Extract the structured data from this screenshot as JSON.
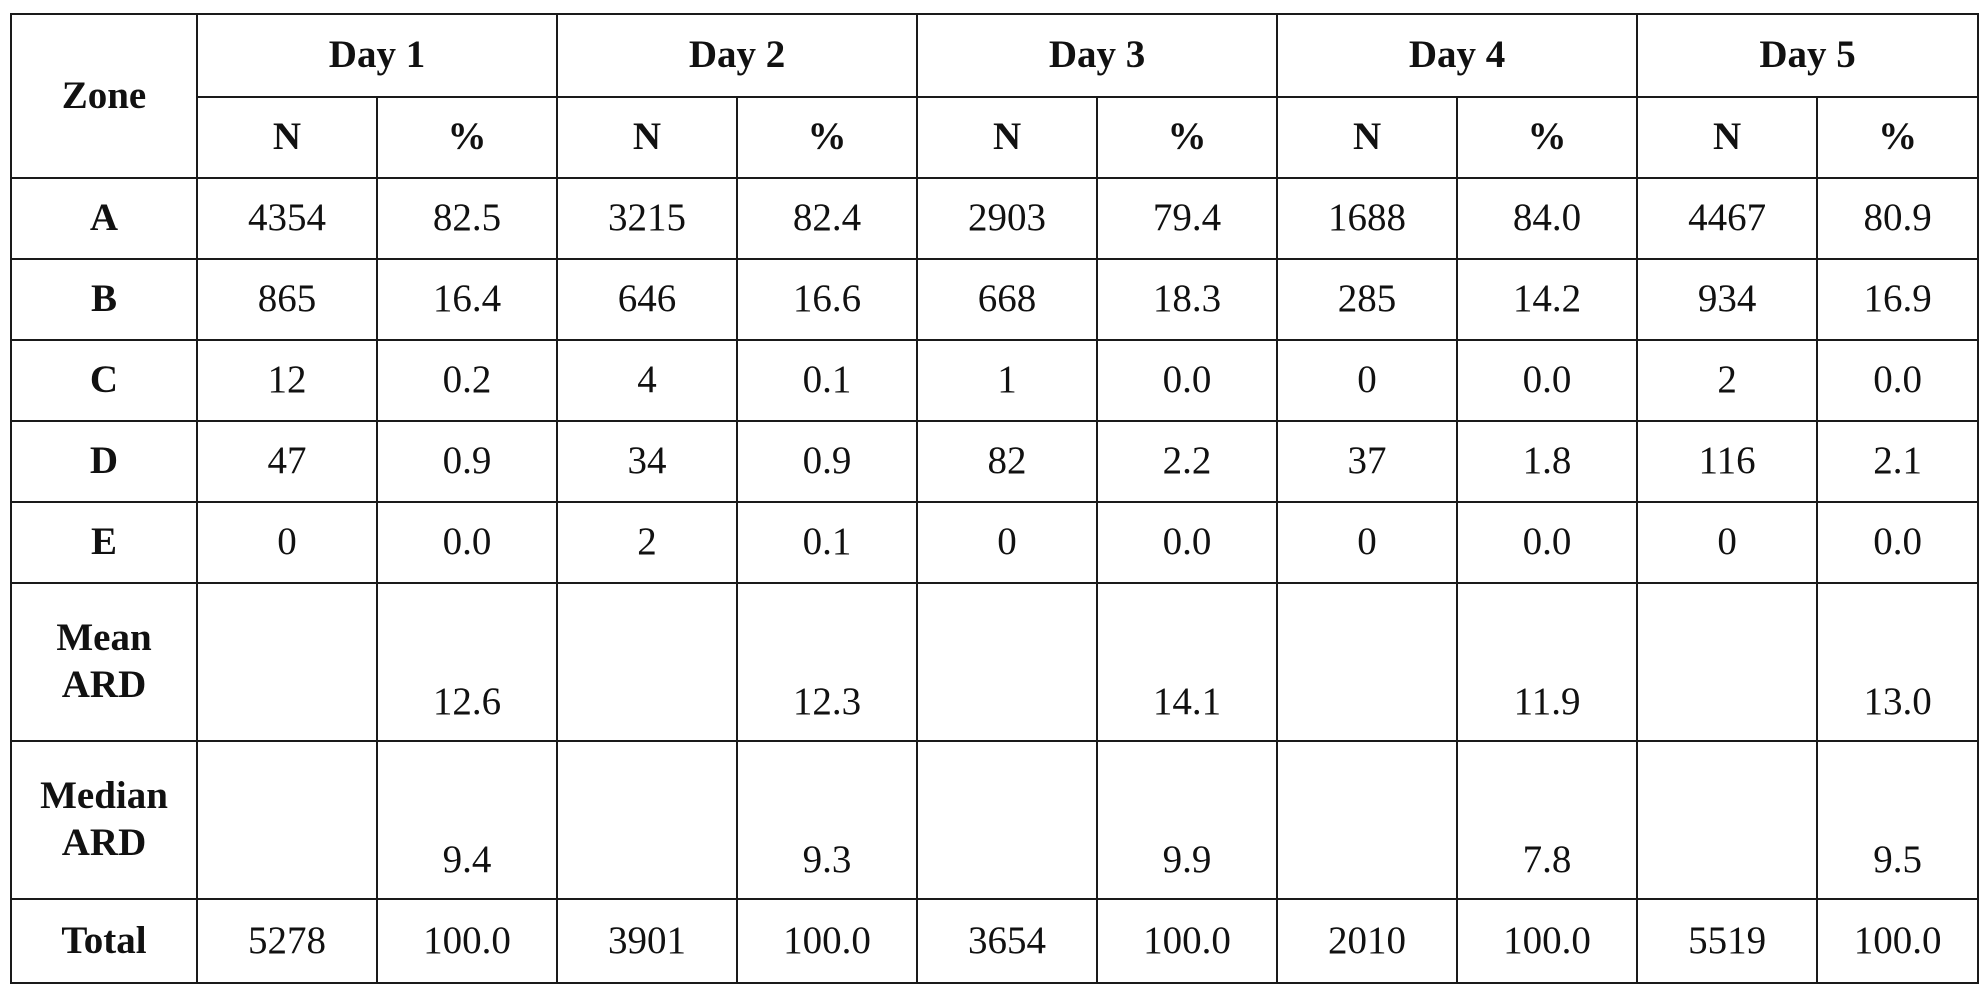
{
  "table": {
    "zone_header": "Zone",
    "days": [
      "Day 1",
      "Day 2",
      "Day 3",
      "Day 4",
      "Day 5"
    ],
    "sub_headers": {
      "n": "N",
      "pct": "%"
    },
    "rows": [
      {
        "zone": "A",
        "values": [
          "4354",
          "82.5",
          "3215",
          "82.4",
          "2903",
          "79.4",
          "1688",
          "84.0",
          "4467",
          "80.9"
        ]
      },
      {
        "zone": "B",
        "values": [
          "865",
          "16.4",
          "646",
          "16.6",
          "668",
          "18.3",
          "285",
          "14.2",
          "934",
          "16.9"
        ]
      },
      {
        "zone": "C",
        "values": [
          "12",
          "0.2",
          "4",
          "0.1",
          "1",
          "0.0",
          "0",
          "0.0",
          "2",
          "0.0"
        ]
      },
      {
        "zone": "D",
        "values": [
          "47",
          "0.9",
          "34",
          "0.9",
          "82",
          "2.2",
          "37",
          "1.8",
          "116",
          "2.1"
        ]
      },
      {
        "zone": "E",
        "values": [
          "0",
          "0.0",
          "2",
          "0.1",
          "0",
          "0.0",
          "0",
          "0.0",
          "0",
          "0.0"
        ]
      }
    ],
    "mean_ard": {
      "label_line1": "Mean",
      "label_line2": "ARD",
      "values": [
        "12.6",
        "12.3",
        "14.1",
        "11.9",
        "13.0"
      ]
    },
    "median_ard": {
      "label_line1": "Median",
      "label_line2": "ARD",
      "values": [
        "9.4",
        "9.3",
        "9.9",
        "7.8",
        "9.5"
      ]
    },
    "total": {
      "label": "Total",
      "values": [
        "5278",
        "100.0",
        "3901",
        "100.0",
        "3654",
        "100.0",
        "2010",
        "100.0",
        "5519",
        "100.0"
      ]
    }
  }
}
